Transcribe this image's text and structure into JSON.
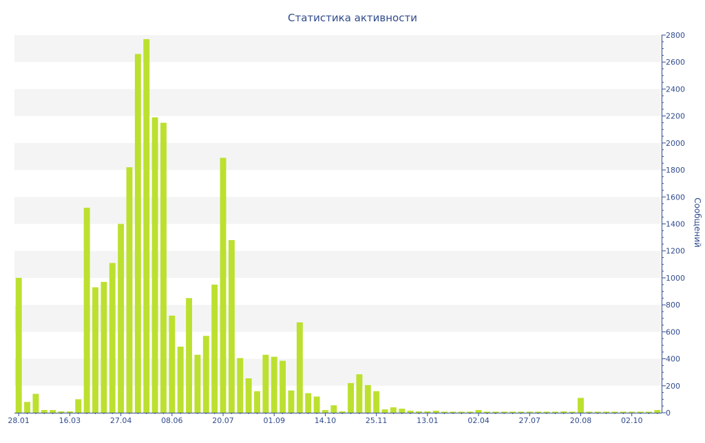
{
  "colors": {
    "bar": "#bce02f",
    "text": "#2f4a8c",
    "axis": "#2f4a8c",
    "band": "#f4f4f4",
    "background": "#ffffff"
  },
  "chart_data": {
    "type": "bar",
    "title": "Статистика активности",
    "xlabel": "",
    "ylabel": "Сообщений",
    "y_axis_side": "right",
    "ylim": [
      0,
      2800
    ],
    "y_ticks": [
      0,
      200,
      400,
      600,
      800,
      1000,
      1200,
      1400,
      1600,
      1800,
      2000,
      2200,
      2400,
      2600,
      2800
    ],
    "x_tick_labels": [
      {
        "label": "28.01",
        "index": 0
      },
      {
        "label": "16.03",
        "index": 6
      },
      {
        "label": "27.04",
        "index": 12
      },
      {
        "label": "08.06",
        "index": 18
      },
      {
        "label": "20.07",
        "index": 24
      },
      {
        "label": "01.09",
        "index": 30
      },
      {
        "label": "14.10",
        "index": 36
      },
      {
        "label": "25.11",
        "index": 42
      },
      {
        "label": "13.01",
        "index": 48
      },
      {
        "label": "02.04",
        "index": 54
      },
      {
        "label": "27.07",
        "index": 60
      },
      {
        "label": "20.08",
        "index": 66
      },
      {
        "label": "02.10",
        "index": 72
      }
    ],
    "grid": "alternating horizontal bands",
    "legend": "none",
    "series": [
      {
        "values": [
          1000,
          80,
          140,
          20,
          20,
          10,
          10,
          100,
          1520,
          930,
          970,
          1110,
          1400,
          1820,
          2660,
          2770,
          2190,
          2150,
          720,
          490,
          850,
          430,
          570,
          950,
          1890,
          1280,
          405,
          255,
          160,
          430,
          415,
          385,
          165,
          670,
          145,
          120,
          20,
          55,
          10,
          220,
          285,
          205,
          160,
          25,
          40,
          30,
          15,
          10,
          10,
          15,
          8,
          8,
          8,
          8,
          20,
          8,
          8,
          8,
          8,
          8,
          8,
          8,
          8,
          8,
          10,
          8,
          110,
          8,
          8,
          8,
          8,
          8,
          8,
          8,
          8,
          20
        ]
      }
    ]
  }
}
